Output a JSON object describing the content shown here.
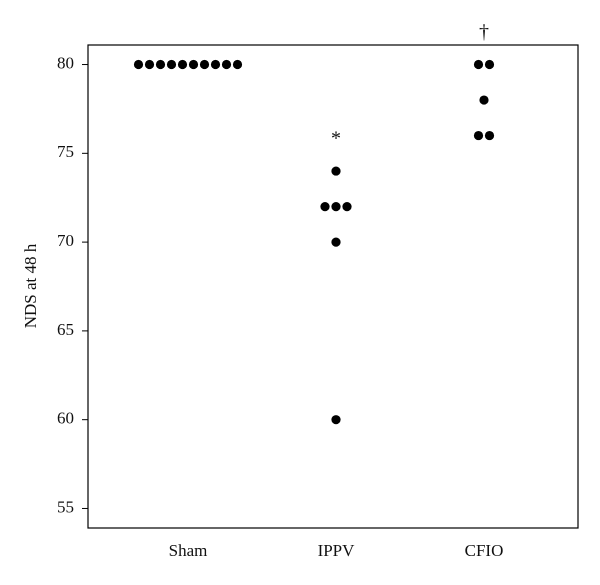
{
  "chart_data": {
    "type": "dot",
    "y_label": "NDS at 48 h",
    "categories": [
      "Sham",
      "IPPV",
      "CFIO"
    ],
    "values": [
      [
        80,
        80,
        80,
        80,
        80,
        80,
        80,
        80,
        80,
        80
      ],
      [
        74,
        72,
        72,
        72,
        70,
        60
      ],
      [
        80,
        80,
        78,
        76,
        76
      ]
    ],
    "color": "#000000",
    "annotations": [
      {
        "category": "IPPV",
        "text": "*"
      },
      {
        "category": "CFIO",
        "text": "†"
      }
    ],
    "ylim": [
      53.9,
      81.1
    ],
    "yticks": [
      55,
      60,
      65,
      70,
      75,
      80
    ]
  }
}
